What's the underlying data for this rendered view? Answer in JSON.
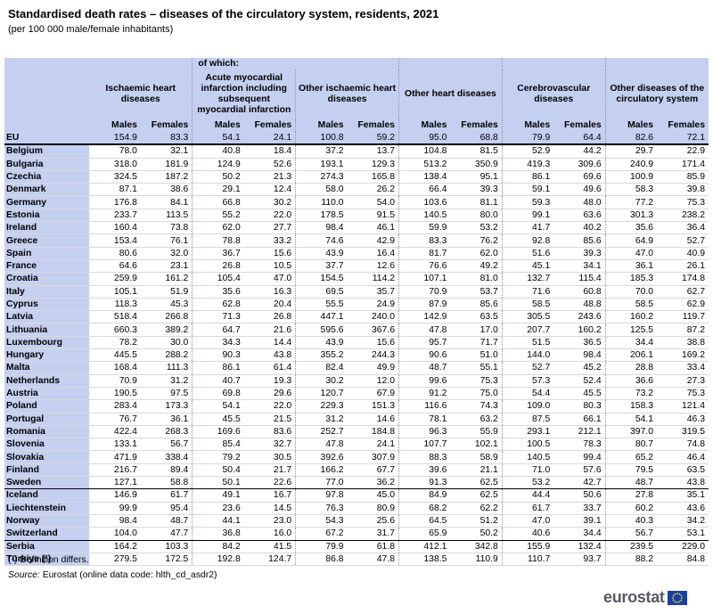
{
  "title": "Standardised death rates – diseases of the circulatory system, residents, 2021",
  "subtitle": "(per 100 000 male/female inhabitants)",
  "header": {
    "of_which": "of which:",
    "groups": [
      "Ischaemic heart diseases",
      "Acute myocardial infarction including subsequent myocardial infarction",
      "Other ischaemic heart diseases",
      "Other heart diseases",
      "Cerebrovascular diseases",
      "Other diseases of the circulatory system"
    ],
    "males": "Males",
    "females": "Females"
  },
  "rows": [
    {
      "country": "EU",
      "v": [
        "154.9",
        "83.3",
        "54.1",
        "24.1",
        "100.8",
        "59.2",
        "95.0",
        "68.8",
        "79.9",
        "64.4",
        "82.6",
        "72.1"
      ]
    },
    {
      "country": "Belgium",
      "v": [
        "78.0",
        "32.1",
        "40.8",
        "18.4",
        "37.2",
        "13.7",
        "104.8",
        "81.5",
        "52.9",
        "44.2",
        "29.7",
        "22.9"
      ]
    },
    {
      "country": "Bulgaria",
      "v": [
        "318.0",
        "181.9",
        "124.9",
        "52.6",
        "193.1",
        "129.3",
        "513.2",
        "350.9",
        "419.3",
        "309.6",
        "240.9",
        "171.4"
      ]
    },
    {
      "country": "Czechia",
      "v": [
        "324.5",
        "187.2",
        "50.2",
        "21.3",
        "274.3",
        "165.8",
        "138.4",
        "95.1",
        "86.1",
        "69.6",
        "100.9",
        "85.9"
      ]
    },
    {
      "country": "Denmark",
      "v": [
        "87.1",
        "38.6",
        "29.1",
        "12.4",
        "58.0",
        "26.2",
        "66.4",
        "39.3",
        "59.1",
        "49.6",
        "58.3",
        "39.8"
      ]
    },
    {
      "country": "Germany",
      "v": [
        "176.8",
        "84.1",
        "66.8",
        "30.2",
        "110.0",
        "54.0",
        "103.6",
        "81.1",
        "59.3",
        "48.0",
        "77.2",
        "75.3"
      ]
    },
    {
      "country": "Estonia",
      "v": [
        "233.7",
        "113.5",
        "55.2",
        "22.0",
        "178.5",
        "91.5",
        "140.5",
        "80.0",
        "99.1",
        "63.6",
        "301.3",
        "238.2"
      ]
    },
    {
      "country": "Ireland",
      "v": [
        "160.4",
        "73.8",
        "62.0",
        "27.7",
        "98.4",
        "46.1",
        "59.9",
        "53.2",
        "41.7",
        "40.2",
        "35.6",
        "36.4"
      ]
    },
    {
      "country": "Greece",
      "v": [
        "153.4",
        "76.1",
        "78.8",
        "33.2",
        "74.6",
        "42.9",
        "83.3",
        "76.2",
        "92.8",
        "85.6",
        "64.9",
        "52.7"
      ]
    },
    {
      "country": "Spain",
      "v": [
        "80.6",
        "32.0",
        "36.7",
        "15.6",
        "43.9",
        "16.4",
        "81.7",
        "62.0",
        "51.6",
        "39.3",
        "47.0",
        "40.9"
      ]
    },
    {
      "country": "France",
      "v": [
        "64.6",
        "23.1",
        "26.8",
        "10.5",
        "37.7",
        "12.6",
        "76.6",
        "49.2",
        "45.1",
        "34.1",
        "36.1",
        "26.1"
      ]
    },
    {
      "country": "Croatia",
      "v": [
        "259.9",
        "161.2",
        "105.4",
        "47.0",
        "154.5",
        "114.2",
        "107.1",
        "81.0",
        "132.7",
        "115.4",
        "185.3",
        "174.8"
      ]
    },
    {
      "country": "Italy",
      "v": [
        "105.1",
        "51.9",
        "35.6",
        "16.3",
        "69.5",
        "35.7",
        "70.9",
        "53.7",
        "71.6",
        "60.8",
        "70.0",
        "62.7"
      ]
    },
    {
      "country": "Cyprus",
      "v": [
        "118.3",
        "45.3",
        "62.8",
        "20.4",
        "55.5",
        "24.9",
        "87.9",
        "85.6",
        "58.5",
        "48.8",
        "58.5",
        "62.9"
      ]
    },
    {
      "country": "Latvia",
      "v": [
        "518.4",
        "266.8",
        "71.3",
        "26.8",
        "447.1",
        "240.0",
        "142.9",
        "63.5",
        "305.5",
        "243.6",
        "160.2",
        "119.7"
      ]
    },
    {
      "country": "Lithuania",
      "v": [
        "660.3",
        "389.2",
        "64.7",
        "21.6",
        "595.6",
        "367.6",
        "47.8",
        "17.0",
        "207.7",
        "160.2",
        "125.5",
        "87.2"
      ]
    },
    {
      "country": "Luxembourg",
      "v": [
        "78.2",
        "30.0",
        "34.3",
        "14.4",
        "43.9",
        "15.6",
        "95.7",
        "71.7",
        "51.5",
        "36.5",
        "34.4",
        "38.8"
      ]
    },
    {
      "country": "Hungary",
      "v": [
        "445.5",
        "288.2",
        "90.3",
        "43.8",
        "355.2",
        "244.3",
        "90.6",
        "51.0",
        "144.0",
        "98.4",
        "206.1",
        "169.2"
      ]
    },
    {
      "country": "Malta",
      "v": [
        "168.4",
        "111.3",
        "86.1",
        "61.4",
        "82.4",
        "49.9",
        "48.7",
        "55.1",
        "52.7",
        "45.2",
        "28.8",
        "33.4"
      ]
    },
    {
      "country": "Netherlands",
      "v": [
        "70.9",
        "31.2",
        "40.7",
        "19.3",
        "30.2",
        "12.0",
        "99.6",
        "75.3",
        "57.3",
        "52.4",
        "36.6",
        "27.3"
      ]
    },
    {
      "country": "Austria",
      "v": [
        "190.5",
        "97.5",
        "69.8",
        "29.6",
        "120.7",
        "67.9",
        "91.2",
        "75.0",
        "54.4",
        "45.5",
        "73.2",
        "75.3"
      ]
    },
    {
      "country": "Poland",
      "v": [
        "283.4",
        "173.3",
        "54.1",
        "22.0",
        "229.3",
        "151.3",
        "116.6",
        "74.3",
        "109.0",
        "80.3",
        "158.3",
        "121.4"
      ]
    },
    {
      "country": "Portugal",
      "v": [
        "76.7",
        "36.1",
        "45.5",
        "21.5",
        "31.2",
        "14.6",
        "78.1",
        "63.2",
        "87.5",
        "66.1",
        "54.1",
        "46.3"
      ]
    },
    {
      "country": "Romania",
      "v": [
        "422.4",
        "268.3",
        "169.6",
        "83.6",
        "252.7",
        "184.8",
        "96.3",
        "55.9",
        "293.1",
        "212.1",
        "397.0",
        "319.5"
      ]
    },
    {
      "country": "Slovenia",
      "v": [
        "133.1",
        "56.7",
        "85.4",
        "32.7",
        "47.8",
        "24.1",
        "107.7",
        "102.1",
        "100.5",
        "78.3",
        "80.7",
        "74.8"
      ]
    },
    {
      "country": "Slovakia",
      "v": [
        "471.9",
        "338.4",
        "79.2",
        "30.5",
        "392.6",
        "307.9",
        "88.3",
        "58.9",
        "140.5",
        "99.4",
        "65.2",
        "46.4"
      ]
    },
    {
      "country": "Finland",
      "v": [
        "216.7",
        "89.4",
        "50.4",
        "21.7",
        "166.2",
        "67.7",
        "39.6",
        "21.1",
        "71.0",
        "57.6",
        "79.5",
        "63.5"
      ]
    },
    {
      "country": "Sweden",
      "v": [
        "127.1",
        "58.8",
        "50.1",
        "22.6",
        "77.0",
        "36.2",
        "91.3",
        "62.5",
        "53.2",
        "42.7",
        "48.7",
        "43.8"
      ]
    },
    {
      "country": "Iceland",
      "v": [
        "146.9",
        "61.7",
        "49.1",
        "16.7",
        "97.8",
        "45.0",
        "84.9",
        "62.5",
        "44.4",
        "50.6",
        "27.8",
        "35.1"
      ]
    },
    {
      "country": "Liechtenstein",
      "v": [
        "99.9",
        "95.4",
        "23.6",
        "14.5",
        "76.3",
        "80.9",
        "68.2",
        "62.2",
        "61.7",
        "33.7",
        "60.2",
        "43.6"
      ]
    },
    {
      "country": "Norway",
      "v": [
        "98.4",
        "48.7",
        "44.1",
        "23.0",
        "54.3",
        "25.6",
        "64.5",
        "51.2",
        "47.0",
        "39.1",
        "40.3",
        "34.2"
      ]
    },
    {
      "country": "Switzerland",
      "v": [
        "104.0",
        "47.7",
        "36.8",
        "16.0",
        "67.2",
        "31.7",
        "65.9",
        "50.2",
        "40.6",
        "34.4",
        "56.7",
        "53.1"
      ]
    },
    {
      "country": "Serbia",
      "v": [
        "164.2",
        "103.3",
        "84.2",
        "41.5",
        "79.9",
        "61.8",
        "412.1",
        "342.8",
        "155.9",
        "132.4",
        "239.5",
        "229.0"
      ]
    },
    {
      "country": "Türkiye (¹)",
      "v": [
        "279.5",
        "172.5",
        "192.8",
        "124.7",
        "86.8",
        "47.8",
        "138.5",
        "110.9",
        "110.7",
        "93.7",
        "88.2",
        "84.8"
      ]
    }
  ],
  "notes": {
    "footnote": "(¹) Definition differs.",
    "source_label": "Source:",
    "source_text": " Eurostat (online data code: hlth_cd_asdr2)"
  },
  "logo": {
    "text": "eurostat",
    "flag_color": "#1a3fa0",
    "star_color": "#ffdd00"
  },
  "colors": {
    "header_bg": "#c5d0f1"
  }
}
